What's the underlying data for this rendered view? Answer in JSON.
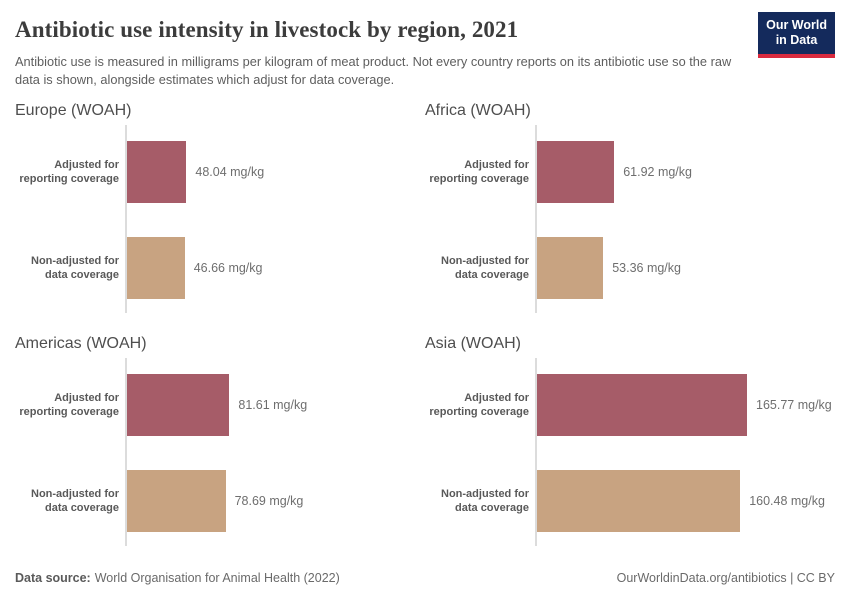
{
  "header": {
    "title": "Antibiotic use intensity in livestock by region, 2021",
    "subtitle": "Antibiotic use is measured in milligrams per kilogram of meat product. Not every country reports on its antibiotic use so the raw data is shown, alongside estimates which adjust for data coverage.",
    "logo": {
      "line1": "Our World",
      "line2": "in Data"
    }
  },
  "chart_data": {
    "type": "bar",
    "orientation": "horizontal",
    "unit": "mg/kg",
    "value_labels_shown": true,
    "grid": false,
    "categories": [
      "Adjusted for reporting coverage",
      "Non-adjusted for data coverage"
    ],
    "colors": {
      "adjusted": "#a65c68",
      "nonadjusted": "#c8a381"
    },
    "facets": [
      {
        "title": "Europe (WOAH)",
        "bars": [
          {
            "label": "Adjusted for\nreporting coverage",
            "value": 48.04,
            "display": "48.04 mg/kg"
          },
          {
            "label": "Non-adjusted for\ndata coverage",
            "value": 46.66,
            "display": "46.66 mg/kg"
          }
        ]
      },
      {
        "title": "Africa (WOAH)",
        "bars": [
          {
            "label": "Adjusted for\nreporting coverage",
            "value": 61.92,
            "display": "61.92 mg/kg"
          },
          {
            "label": "Non-adjusted for\ndata coverage",
            "value": 53.36,
            "display": "53.36 mg/kg"
          }
        ]
      },
      {
        "title": "Americas (WOAH)",
        "bars": [
          {
            "label": "Adjusted for\nreporting coverage",
            "value": 81.61,
            "display": "81.61 mg/kg"
          },
          {
            "label": "Non-adjusted for\ndata coverage",
            "value": 78.69,
            "display": "78.69 mg/kg"
          }
        ]
      },
      {
        "title": "Asia (WOAH)",
        "bars": [
          {
            "label": "Adjusted for\nreporting coverage",
            "value": 165.77,
            "display": "165.77 mg/kg"
          },
          {
            "label": "Non-adjusted for\ndata coverage",
            "value": 160.48,
            "display": "160.48 mg/kg"
          }
        ]
      }
    ]
  },
  "footer": {
    "datasource_label": "Data source:",
    "datasource_value": "World Organisation for Animal Health (2022)",
    "credit": "OurWorldinData.org/antibiotics | CC BY"
  }
}
